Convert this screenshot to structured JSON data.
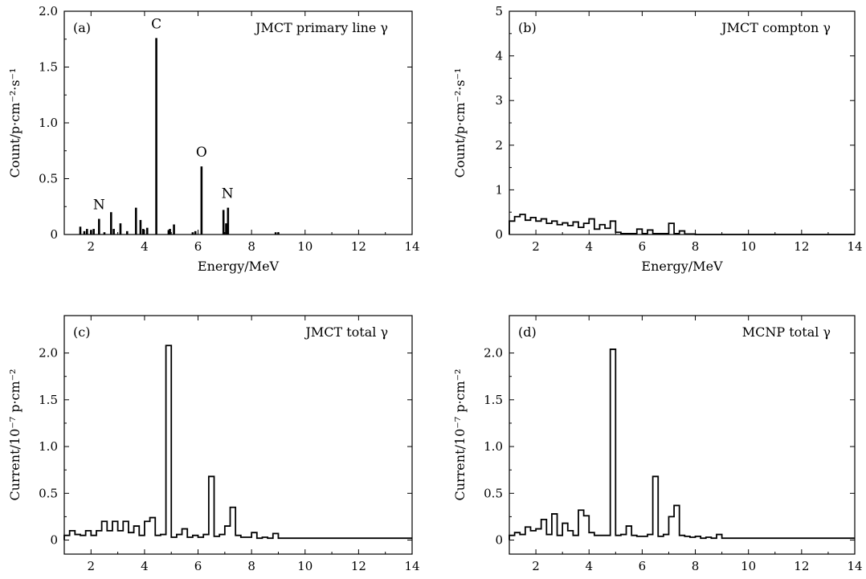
{
  "chart_data": [
    {
      "panel": "(a)",
      "type": "bar",
      "style": "line-spectrum",
      "title": "JMCT primary line γ",
      "xlabel": "Energy/MeV",
      "ylabel": "Count/p·cm⁻²·s⁻¹",
      "xlim": [
        1,
        14
      ],
      "ylim": [
        0,
        2.0
      ],
      "xticks": [
        "2",
        "4",
        "6",
        "8",
        "10",
        "12",
        "14"
      ],
      "yticks": [
        "0",
        "0.5",
        "1.0",
        "1.5",
        "2.0"
      ],
      "lines": [
        {
          "x": 1.6,
          "y": 0.07
        },
        {
          "x": 1.75,
          "y": 0.03
        },
        {
          "x": 1.85,
          "y": 0.05
        },
        {
          "x": 2.0,
          "y": 0.04
        },
        {
          "x": 2.1,
          "y": 0.05
        },
        {
          "x": 2.3,
          "y": 0.14
        },
        {
          "x": 2.5,
          "y": 0.02
        },
        {
          "x": 2.75,
          "y": 0.2
        },
        {
          "x": 2.85,
          "y": 0.05
        },
        {
          "x": 3.1,
          "y": 0.1
        },
        {
          "x": 3.35,
          "y": 0.03
        },
        {
          "x": 3.68,
          "y": 0.24
        },
        {
          "x": 3.85,
          "y": 0.13
        },
        {
          "x": 3.95,
          "y": 0.05
        },
        {
          "x": 4.1,
          "y": 0.06
        },
        {
          "x": 4.44,
          "y": 1.76
        },
        {
          "x": 4.9,
          "y": 0.04
        },
        {
          "x": 4.95,
          "y": 0.05
        },
        {
          "x": 5.1,
          "y": 0.09
        },
        {
          "x": 5.8,
          "y": 0.02
        },
        {
          "x": 5.9,
          "y": 0.03
        },
        {
          "x": 6.13,
          "y": 0.61
        },
        {
          "x": 6.95,
          "y": 0.22
        },
        {
          "x": 7.05,
          "y": 0.1
        },
        {
          "x": 7.12,
          "y": 0.24
        },
        {
          "x": 8.9,
          "y": 0.02
        },
        {
          "x": 9.0,
          "y": 0.02
        }
      ],
      "annotations": [
        {
          "text": "C",
          "x": 4.44,
          "y": 1.76
        },
        {
          "text": "O",
          "x": 6.13,
          "y": 0.61
        },
        {
          "text": "N",
          "x": 2.3,
          "y": 0.14
        },
        {
          "text": "N",
          "x": 7.1,
          "y": 0.24
        }
      ]
    },
    {
      "panel": "(b)",
      "type": "line",
      "style": "step-histogram",
      "title": "JMCT compton γ",
      "xlabel": "Energy/MeV",
      "ylabel": "Count/p·cm⁻²·s⁻¹",
      "xlim": [
        1,
        14
      ],
      "ylim": [
        0,
        5
      ],
      "xticks": [
        "2",
        "4",
        "6",
        "8",
        "10",
        "12",
        "14"
      ],
      "yticks": [
        "0",
        "1",
        "2",
        "3",
        "4",
        "5"
      ],
      "bin_edges": [
        1.0,
        1.2,
        1.4,
        1.6,
        1.8,
        2.0,
        2.2,
        2.4,
        2.6,
        2.8,
        3.0,
        3.2,
        3.4,
        3.6,
        3.8,
        4.0,
        4.2,
        4.4,
        4.6,
        4.8,
        5.0,
        5.2,
        5.4,
        5.6,
        5.8,
        6.0,
        6.2,
        6.4,
        6.6,
        6.8,
        7.0,
        7.2,
        7.4,
        7.6,
        7.8,
        8.0,
        14.0
      ],
      "values": [
        0.3,
        0.4,
        0.45,
        0.32,
        0.38,
        0.3,
        0.35,
        0.25,
        0.3,
        0.22,
        0.26,
        0.2,
        0.28,
        0.16,
        0.25,
        0.35,
        0.12,
        0.22,
        0.14,
        0.3,
        0.05,
        0.02,
        0.02,
        0.02,
        0.12,
        0.02,
        0.1,
        0.02,
        0.02,
        0.02,
        0.25,
        0.02,
        0.08,
        0.01,
        0.01,
        0.0
      ]
    },
    {
      "panel": "(c)",
      "type": "line",
      "style": "step-histogram",
      "title": "JMCT total γ",
      "xlabel": "Energy/MeV",
      "ylabel": "Current/10⁻⁷ p·cm⁻²",
      "xlim": [
        1,
        14
      ],
      "ylim": [
        -0.15,
        2.4
      ],
      "xticks": [
        "2",
        "4",
        "6",
        "8",
        "10",
        "12",
        "14"
      ],
      "yticks": [
        "0",
        "0.5",
        "1.0",
        "1.5",
        "2.0"
      ],
      "bin_edges": [
        1.0,
        1.2,
        1.4,
        1.6,
        1.8,
        2.0,
        2.2,
        2.4,
        2.6,
        2.8,
        3.0,
        3.2,
        3.4,
        3.6,
        3.8,
        4.0,
        4.2,
        4.4,
        4.6,
        4.8,
        5.0,
        5.2,
        5.4,
        5.6,
        5.8,
        6.0,
        6.2,
        6.4,
        6.6,
        6.8,
        7.0,
        7.2,
        7.4,
        7.6,
        7.8,
        8.0,
        8.2,
        8.4,
        8.6,
        8.8,
        9.0,
        9.2,
        14.0
      ],
      "values": [
        0.05,
        0.1,
        0.06,
        0.05,
        0.1,
        0.05,
        0.1,
        0.2,
        0.1,
        0.2,
        0.1,
        0.2,
        0.08,
        0.15,
        0.05,
        0.2,
        0.24,
        0.05,
        0.06,
        2.08,
        0.03,
        0.06,
        0.12,
        0.03,
        0.05,
        0.03,
        0.06,
        0.68,
        0.04,
        0.06,
        0.15,
        0.35,
        0.05,
        0.03,
        0.03,
        0.08,
        0.02,
        0.03,
        0.02,
        0.07,
        0.02,
        0.02
      ]
    },
    {
      "panel": "(d)",
      "type": "line",
      "style": "step-histogram",
      "title": "MCNP total γ",
      "xlabel": "Energy/MeV",
      "ylabel": "Current/10⁻⁷ p·cm⁻²",
      "xlim": [
        1,
        14
      ],
      "ylim": [
        -0.15,
        2.4
      ],
      "xticks": [
        "2",
        "4",
        "6",
        "8",
        "10",
        "12",
        "14"
      ],
      "yticks": [
        "0",
        "0.5",
        "1.0",
        "1.5",
        "2.0"
      ],
      "bin_edges": [
        1.0,
        1.2,
        1.4,
        1.6,
        1.8,
        2.0,
        2.2,
        2.4,
        2.6,
        2.8,
        3.0,
        3.2,
        3.4,
        3.6,
        3.8,
        4.0,
        4.2,
        4.4,
        4.6,
        4.8,
        5.0,
        5.2,
        5.4,
        5.6,
        5.8,
        6.0,
        6.2,
        6.4,
        6.6,
        6.8,
        7.0,
        7.2,
        7.4,
        7.6,
        7.8,
        8.0,
        8.2,
        8.4,
        8.6,
        8.8,
        9.0,
        9.2,
        14.0
      ],
      "values": [
        0.05,
        0.08,
        0.06,
        0.14,
        0.1,
        0.12,
        0.22,
        0.06,
        0.28,
        0.05,
        0.18,
        0.1,
        0.05,
        0.32,
        0.26,
        0.08,
        0.05,
        0.05,
        0.05,
        2.04,
        0.05,
        0.06,
        0.15,
        0.05,
        0.04,
        0.04,
        0.06,
        0.68,
        0.04,
        0.06,
        0.25,
        0.37,
        0.05,
        0.04,
        0.03,
        0.04,
        0.02,
        0.03,
        0.02,
        0.06,
        0.02,
        0.02
      ]
    }
  ]
}
